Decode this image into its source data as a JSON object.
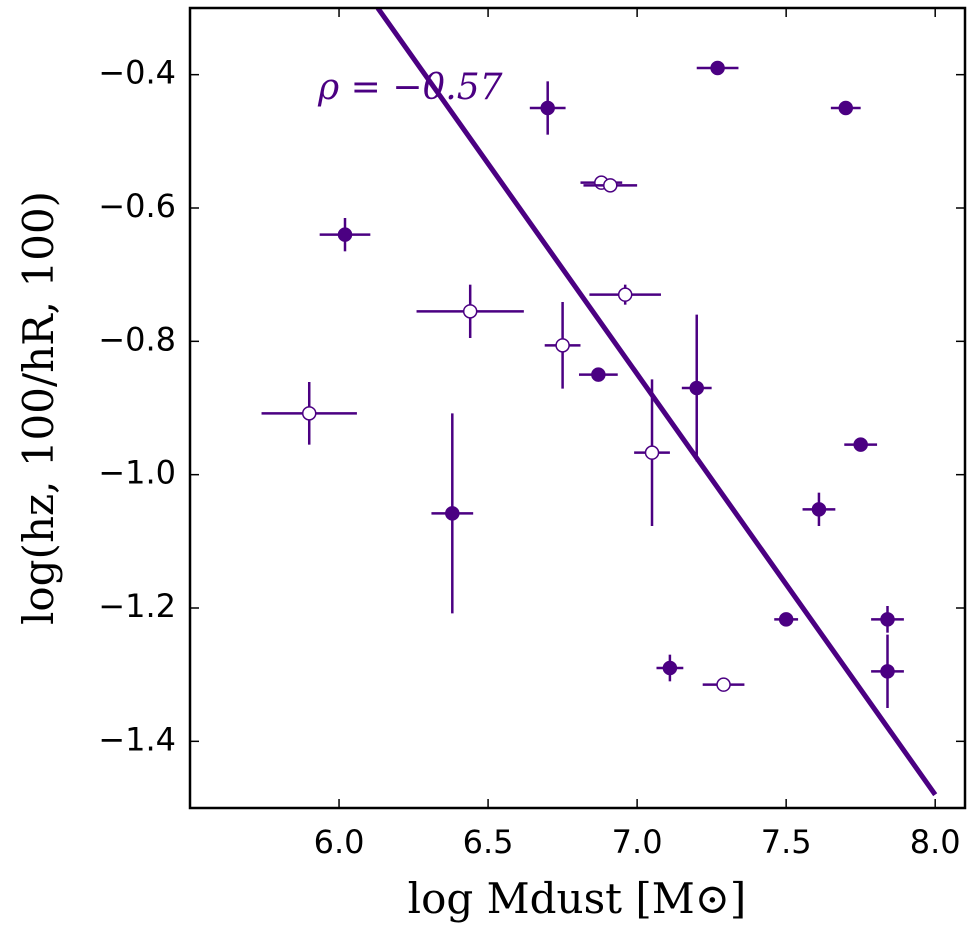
{
  "chart_data": {
    "type": "scatter",
    "xlabel": "log Mdust [M⊙]",
    "ylabel": "log(hz, 100/hR, 100)",
    "annotation": "ρ = −0.57",
    "color": "#4b0082",
    "xlim": [
      5.5,
      8.1
    ],
    "ylim": [
      -1.5,
      -0.3
    ],
    "xticks": [
      {
        "value": 6.0,
        "label": "6.0"
      },
      {
        "value": 6.5,
        "label": "6.5"
      },
      {
        "value": 7.0,
        "label": "7.0"
      },
      {
        "value": 7.5,
        "label": "7.5"
      },
      {
        "value": 8.0,
        "label": "8.0"
      }
    ],
    "yticks": [
      {
        "value": -0.4,
        "label": "−0.4"
      },
      {
        "value": -0.6,
        "label": "−0.6"
      },
      {
        "value": -0.8,
        "label": "−0.8"
      },
      {
        "value": -1.0,
        "label": "−1.0"
      },
      {
        "value": -1.2,
        "label": "−1.2"
      },
      {
        "value": -1.4,
        "label": "−1.4"
      }
    ],
    "series": [
      {
        "marker": "filled",
        "x": [
          6.7,
          7.27,
          7.7,
          6.02,
          6.87,
          7.2,
          7.75,
          6.38,
          7.61,
          7.5,
          7.84,
          7.11,
          7.84
        ],
        "values": [
          -0.45,
          -0.39,
          -0.45,
          -0.64,
          -0.85,
          -0.87,
          -0.955,
          -1.058,
          -1.052,
          -1.217,
          -1.217,
          -1.29,
          -1.295
        ],
        "xerr": [
          0.06,
          0.07,
          0.05,
          0.085,
          0.065,
          0.05,
          0.055,
          0.07,
          0.055,
          0.04,
          0.055,
          0.045,
          0.055
        ],
        "yerr": [
          0.04,
          0,
          0,
          0.025,
          0,
          0.11,
          0,
          0.15,
          0.025,
          0,
          0.02,
          0.02,
          0.055
        ]
      },
      {
        "marker": "open",
        "x": [
          6.88,
          6.91,
          6.96,
          6.44,
          6.75,
          5.9,
          7.05,
          7.29
        ],
        "values": [
          -0.562,
          -0.566,
          -0.73,
          -0.755,
          -0.806,
          -0.908,
          -0.967,
          -1.315
        ],
        "xerr": [
          0.07,
          0.09,
          0.12,
          0.18,
          0.06,
          0.16,
          0.06,
          0.07
        ],
        "yerr": [
          0,
          0,
          0.015,
          0.04,
          0.065,
          0.047,
          0.11,
          0
        ]
      }
    ],
    "fit": {
      "x": [
        6.13,
        8.0
      ],
      "y": [
        -0.3,
        -1.48
      ]
    }
  }
}
